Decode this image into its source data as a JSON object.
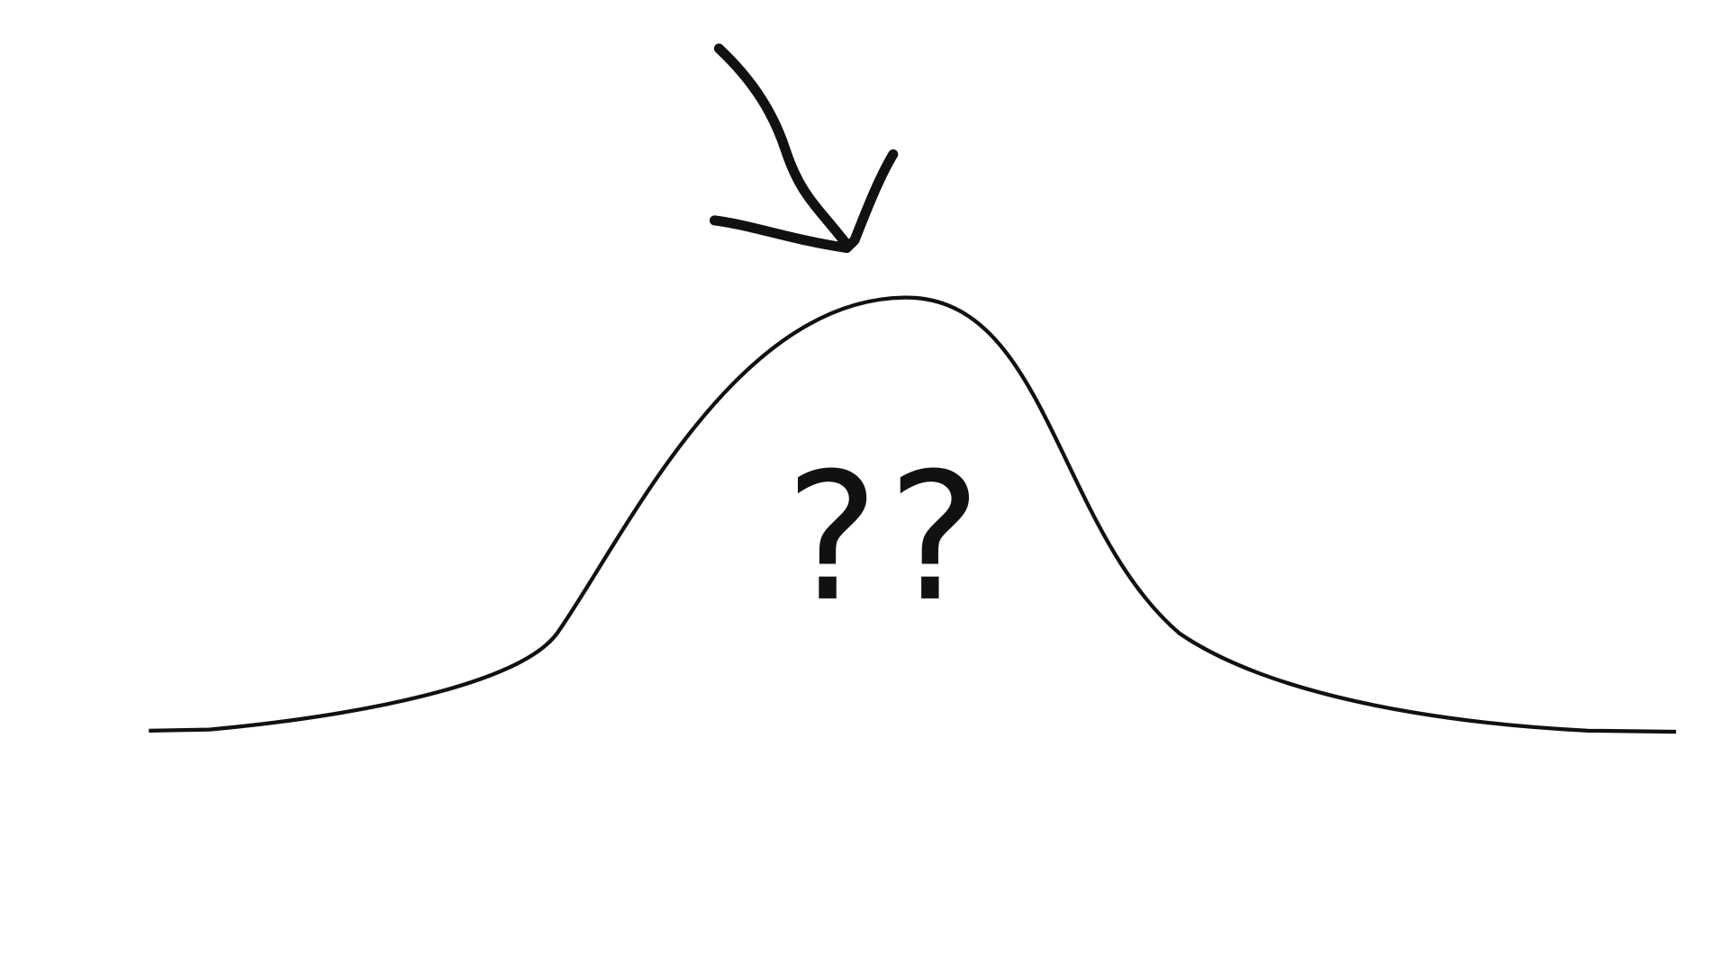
{
  "label": "??"
}
